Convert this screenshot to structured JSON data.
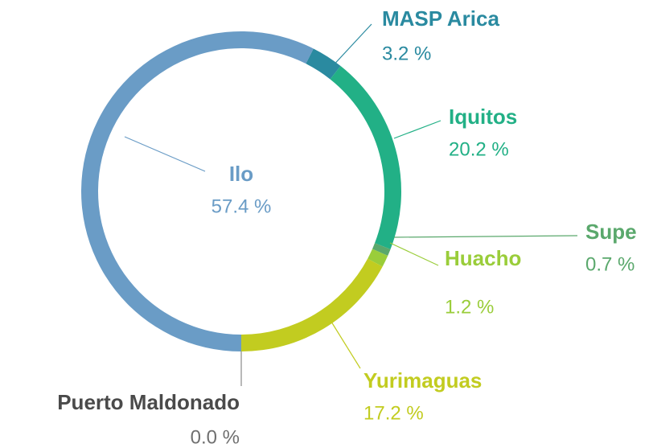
{
  "chart_data": {
    "type": "donut",
    "categories": [
      "Puerto Maldonado",
      "Ilo",
      "MASP Arica",
      "Iquitos",
      "Supe",
      "Huacho",
      "Yurimaguas"
    ],
    "values": [
      0.0,
      57.4,
      3.2,
      20.2,
      0.7,
      1.2,
      17.2
    ],
    "value_labels": [
      "0.0 %",
      "57.4 %",
      "3.2 %",
      "20.2 %",
      "0.7 %",
      "1.2 %",
      "17.2 %"
    ],
    "colors": [
      "#8a8a8a",
      "#6a9cc6",
      "#2a8aa0",
      "#22b086",
      "#5aa86c",
      "#9acd3a",
      "#c2cc20"
    ]
  }
}
